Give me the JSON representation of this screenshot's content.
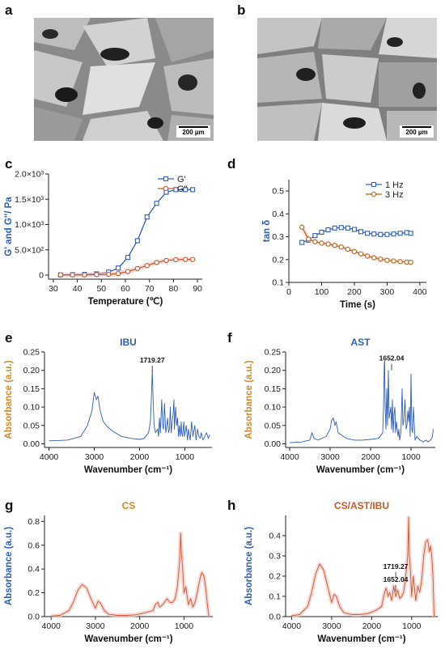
{
  "panels": {
    "a": {
      "label": "a",
      "scalebar": "200 µm"
    },
    "b": {
      "label": "b",
      "scalebar": "200 µm"
    }
  },
  "chart_data": [
    {
      "id": "c",
      "label": "c",
      "type": "line",
      "xlabel": "Temperature (℃)",
      "ylabel": "G' and G''/ Pa",
      "xlim": [
        28,
        92
      ],
      "ylim": [
        -80,
        2000
      ],
      "xticks": [
        30,
        40,
        50,
        60,
        70,
        80,
        90
      ],
      "yticks": [
        0,
        500,
        1000,
        1500,
        2000
      ],
      "yticklabels": [
        "0",
        "5.0×10²",
        "1.0×10³",
        "1.5×10³",
        "2.0×10³"
      ],
      "legend": "top-right",
      "series": [
        {
          "name": "G'",
          "color": "#2f5fb7",
          "marker": "square",
          "x": [
            33,
            38,
            43,
            48,
            53,
            57,
            61,
            65,
            69,
            73,
            77,
            81,
            85,
            88
          ],
          "y": [
            5,
            10,
            15,
            25,
            60,
            140,
            350,
            680,
            1150,
            1420,
            1640,
            1690,
            1690,
            1690
          ]
        },
        {
          "name": "G''",
          "color": "#c55a2b",
          "marker": "circle",
          "x": [
            33,
            38,
            43,
            48,
            53,
            57,
            61,
            65,
            69,
            73,
            77,
            81,
            85,
            88
          ],
          "y": [
            5,
            5,
            5,
            10,
            15,
            30,
            70,
            130,
            190,
            250,
            290,
            305,
            310,
            310
          ]
        }
      ]
    },
    {
      "id": "d",
      "label": "d",
      "type": "line",
      "xlabel": "Time (s)",
      "ylabel": "tan δ",
      "xlim": [
        0,
        420
      ],
      "ylim": [
        0.1,
        0.55
      ],
      "xticks": [
        0,
        100,
        200,
        300,
        400
      ],
      "yticks": [
        0.1,
        0.2,
        0.3,
        0.4,
        0.5
      ],
      "yticklabels": [
        "0.1",
        "0.2",
        "0.3",
        "0.4",
        "0.5"
      ],
      "legend": "top-right",
      "series": [
        {
          "name": "1 Hz",
          "color": "#2f5fb7",
          "marker": "square",
          "x": [
            40,
            60,
            80,
            100,
            120,
            140,
            160,
            180,
            200,
            220,
            240,
            260,
            280,
            300,
            320,
            340,
            360,
            372
          ],
          "y": [
            0.275,
            0.285,
            0.305,
            0.32,
            0.33,
            0.338,
            0.34,
            0.338,
            0.332,
            0.322,
            0.315,
            0.312,
            0.31,
            0.31,
            0.312,
            0.315,
            0.318,
            0.315
          ]
        },
        {
          "name": "3 Hz",
          "color": "#b5651d",
          "marker": "circle",
          "x": [
            40,
            60,
            80,
            100,
            120,
            140,
            160,
            180,
            200,
            220,
            240,
            260,
            280,
            300,
            320,
            340,
            360,
            372
          ],
          "y": [
            0.342,
            0.29,
            0.278,
            0.272,
            0.268,
            0.262,
            0.255,
            0.245,
            0.235,
            0.225,
            0.215,
            0.208,
            0.202,
            0.197,
            0.194,
            0.191,
            0.189,
            0.188
          ]
        }
      ]
    },
    {
      "id": "e",
      "label": "e",
      "type": "line",
      "title": "IBU",
      "xlabel": "Wavenumber (cm⁻¹)",
      "ylabel": "Absorbance (a.u.)",
      "xlim": [
        4100,
        400
      ],
      "ylim": [
        -0.01,
        0.25
      ],
      "reversed": true,
      "xticks": [
        4000,
        3000,
        2000,
        1000
      ],
      "yticks": [
        0.0,
        0.05,
        0.1,
        0.15,
        0.2,
        0.25
      ],
      "yticklabels": [
        "0.00",
        "0.05",
        "0.10",
        "0.15",
        "0.20",
        "0.25"
      ],
      "annotations": [
        {
          "text": "1719.27",
          "x": 1719,
          "y": 0.215
        }
      ],
      "series": [
        {
          "name": "",
          "color": "#2f5fb7",
          "x": [
            4000,
            3600,
            3300,
            3150,
            3050,
            3000,
            2955,
            2920,
            2870,
            2800,
            2700,
            2600,
            2400,
            2200,
            2000,
            1900,
            1800,
            1760,
            1740,
            1719,
            1700,
            1680,
            1650,
            1600,
            1580,
            1560,
            1540,
            1510,
            1490,
            1470,
            1450,
            1420,
            1400,
            1380,
            1360,
            1340,
            1320,
            1300,
            1280,
            1260,
            1240,
            1230,
            1200,
            1180,
            1160,
            1140,
            1120,
            1100,
            1080,
            1070,
            1050,
            1020,
            1008,
            970,
            940,
            920,
            880,
            850,
            820,
            780,
            750,
            720,
            690,
            660,
            640,
            600,
            560,
            520,
            480,
            450
          ],
          "y": [
            0.008,
            0.01,
            0.02,
            0.05,
            0.09,
            0.14,
            0.12,
            0.13,
            0.09,
            0.06,
            0.045,
            0.035,
            0.02,
            0.015,
            0.012,
            0.015,
            0.03,
            0.06,
            0.12,
            0.2,
            0.12,
            0.05,
            0.03,
            0.04,
            0.02,
            0.07,
            0.03,
            0.12,
            0.05,
            0.04,
            0.11,
            0.03,
            0.05,
            0.07,
            0.03,
            0.04,
            0.1,
            0.03,
            0.06,
            0.08,
            0.12,
            0.04,
            0.1,
            0.05,
            0.07,
            0.02,
            0.05,
            0.02,
            0.06,
            0.03,
            0.02,
            0.06,
            0.02,
            0.05,
            0.01,
            0.04,
            0.01,
            0.06,
            0.02,
            0.05,
            0.01,
            0.04,
            0.02,
            0.015,
            0.03,
            0.01,
            0.02,
            0.03,
            0.015,
            0.025
          ]
        }
      ]
    },
    {
      "id": "f",
      "label": "f",
      "type": "line",
      "title": "AST",
      "xlabel": "Wavenumber (cm⁻¹)",
      "ylabel": "Absorbance (a.u.)",
      "xlim": [
        4100,
        400
      ],
      "ylim": [
        -0.01,
        0.25
      ],
      "reversed": true,
      "xticks": [
        4000,
        3000,
        2000,
        1000
      ],
      "yticks": [
        0.0,
        0.05,
        0.1,
        0.15,
        0.2,
        0.25
      ],
      "yticklabels": [
        "0.00",
        "0.05",
        "0.10",
        "0.15",
        "0.20",
        "0.25"
      ],
      "annotations": [
        {
          "text": "1652.04",
          "x": 1480,
          "y": 0.22
        }
      ],
      "series": [
        {
          "name": "",
          "color": "#2f5fb7",
          "x": [
            4000,
            3700,
            3500,
            3450,
            3400,
            3300,
            3100,
            3000,
            2960,
            2920,
            2880,
            2850,
            2800,
            2600,
            2400,
            2200,
            2000,
            1800,
            1700,
            1680,
            1660,
            1652,
            1640,
            1620,
            1600,
            1580,
            1560,
            1540,
            1500,
            1480,
            1460,
            1440,
            1420,
            1400,
            1380,
            1360,
            1320,
            1300,
            1280,
            1250,
            1220,
            1200,
            1180,
            1150,
            1120,
            1100,
            1080,
            1060,
            1040,
            1020,
            1000,
            980,
            960,
            940,
            900,
            860,
            820,
            780,
            740,
            700,
            660,
            620,
            580,
            540,
            500,
            470,
            450
          ],
          "y": [
            0.003,
            0.005,
            0.01,
            0.03,
            0.015,
            0.01,
            0.02,
            0.04,
            0.065,
            0.07,
            0.05,
            0.06,
            0.03,
            0.015,
            0.01,
            0.01,
            0.012,
            0.015,
            0.03,
            0.1,
            0.22,
            0.225,
            0.1,
            0.04,
            0.15,
            0.05,
            0.2,
            0.07,
            0.1,
            0.04,
            0.12,
            0.03,
            0.08,
            0.1,
            0.03,
            0.06,
            0.02,
            0.04,
            0.01,
            0.03,
            0.15,
            0.05,
            0.06,
            0.12,
            0.04,
            0.05,
            0.09,
            0.06,
            0.1,
            0.02,
            0.19,
            0.04,
            0.03,
            0.1,
            0.01,
            0.02,
            0.015,
            0.01,
            0.008,
            0.005,
            0.008,
            0.01,
            0.005,
            0.008,
            0.012,
            0.02,
            0.04
          ]
        }
      ]
    },
    {
      "id": "g",
      "label": "g",
      "type": "area",
      "title": "CS",
      "xlabel": "Wavenumber (cm⁻¹)",
      "ylabel": "Absorbance (a.u.)",
      "xlim": [
        4150,
        350
      ],
      "ylim": [
        0,
        0.85
      ],
      "reversed": true,
      "xticks": [
        4000,
        3000,
        2000,
        1000
      ],
      "yticks": [
        0.0,
        0.2,
        0.4,
        0.6,
        0.8
      ],
      "yticklabels": [
        "0.0",
        "0.2",
        "0.4",
        "0.6",
        "0.8"
      ],
      "series": [
        {
          "name": "",
          "color": "#c55a2b",
          "x": [
            4000,
            3800,
            3600,
            3500,
            3400,
            3300,
            3200,
            3100,
            3000,
            2940,
            2880,
            2800,
            2700,
            2500,
            2300,
            2100,
            1900,
            1700,
            1650,
            1590,
            1550,
            1480,
            1420,
            1380,
            1320,
            1260,
            1200,
            1150,
            1100,
            1075,
            1060,
            1030,
            1000,
            960,
            900,
            850,
            800,
            750,
            700,
            650,
            600,
            560,
            530,
            500,
            470,
            440
          ],
          "y": [
            0.005,
            0.01,
            0.05,
            0.12,
            0.22,
            0.27,
            0.24,
            0.15,
            0.07,
            0.13,
            0.11,
            0.05,
            0.02,
            0.01,
            0.01,
            0.015,
            0.03,
            0.05,
            0.1,
            0.12,
            0.08,
            0.1,
            0.13,
            0.15,
            0.12,
            0.12,
            0.15,
            0.25,
            0.45,
            0.7,
            0.55,
            0.4,
            0.2,
            0.25,
            0.1,
            0.15,
            0.08,
            0.12,
            0.2,
            0.3,
            0.37,
            0.35,
            0.3,
            0.2,
            0.1,
            0.0
          ]
        }
      ]
    },
    {
      "id": "h",
      "label": "h",
      "type": "area",
      "title": "CS/AST/IBU",
      "xlabel": "Wavenumber (cm⁻¹)",
      "ylabel": "Absorbance (a.u.)",
      "xlim": [
        4150,
        350
      ],
      "ylim": [
        0,
        0.5
      ],
      "reversed": true,
      "xticks": [
        4000,
        3000,
        2000,
        1000
      ],
      "yticks": [
        0.0,
        0.1,
        0.2,
        0.3,
        0.4
      ],
      "yticklabels": [
        "0.0",
        "0.1",
        "0.2",
        "0.3",
        "0.4"
      ],
      "annotations": [
        {
          "text": "1719.27",
          "x": 1400,
          "y": 0.225
        },
        {
          "text": "1652.04",
          "x": 1400,
          "y": 0.16
        }
      ],
      "series": [
        {
          "name": "",
          "color": "#c55a2b",
          "x": [
            4000,
            3800,
            3600,
            3500,
            3400,
            3300,
            3200,
            3100,
            3000,
            2940,
            2880,
            2800,
            2700,
            2500,
            2300,
            2100,
            1900,
            1750,
            1720,
            1700,
            1660,
            1640,
            1590,
            1550,
            1500,
            1450,
            1400,
            1350,
            1300,
            1250,
            1200,
            1150,
            1100,
            1075,
            1060,
            1030,
            1000,
            960,
            900,
            850,
            800,
            750,
            700,
            650,
            600,
            560,
            530,
            500,
            470,
            440
          ],
          "y": [
            0.005,
            0.01,
            0.05,
            0.12,
            0.21,
            0.26,
            0.23,
            0.15,
            0.07,
            0.11,
            0.1,
            0.05,
            0.02,
            0.01,
            0.01,
            0.015,
            0.03,
            0.05,
            0.08,
            0.1,
            0.13,
            0.14,
            0.1,
            0.12,
            0.08,
            0.15,
            0.1,
            0.13,
            0.09,
            0.1,
            0.12,
            0.2,
            0.3,
            0.49,
            0.3,
            0.22,
            0.1,
            0.2,
            0.08,
            0.15,
            0.12,
            0.18,
            0.3,
            0.37,
            0.38,
            0.32,
            0.35,
            0.3,
            0.2,
            0.0
          ]
        }
      ]
    }
  ]
}
